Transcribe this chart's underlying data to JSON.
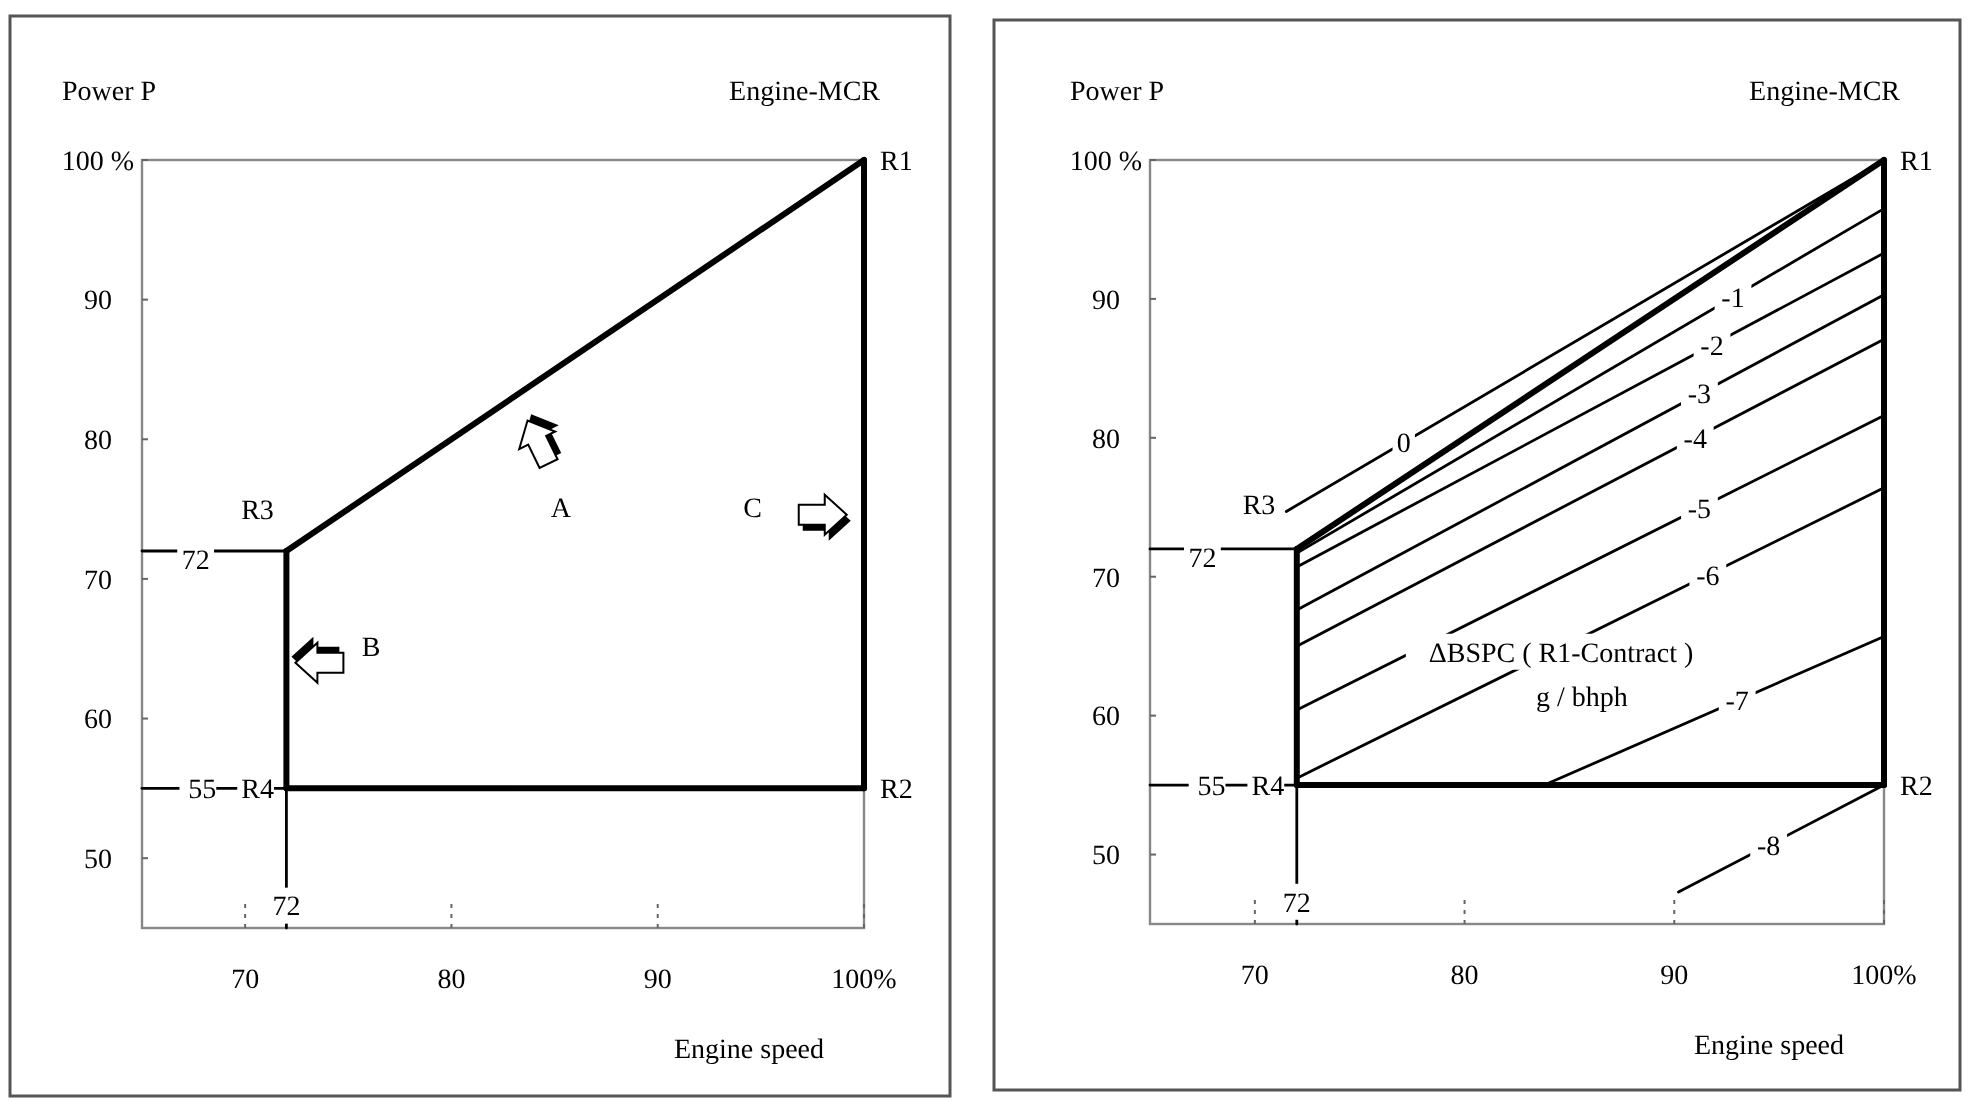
{
  "chart_data": [
    {
      "type": "line",
      "title": "Engine-MCR",
      "xlabel": "Engine speed",
      "ylabel": "Power P",
      "xlim": [
        65,
        100
      ],
      "ylim": [
        45,
        100
      ],
      "xticks": [
        70,
        80,
        90,
        {
          "value": 100,
          "label": "100%"
        }
      ],
      "yticks": [
        50,
        60,
        70,
        80,
        90,
        {
          "value": 100,
          "label": "100 %"
        }
      ],
      "series": [
        {
          "color": "#000000",
          "x": [
            72,
            100
          ],
          "values": [
            72,
            100
          ]
        },
        {
          "color": "#000000",
          "x": [
            72,
            100
          ],
          "values": [
            55,
            55
          ]
        },
        {
          "color": "#000000",
          "x": [
            100,
            100
          ],
          "values": [
            55,
            100
          ]
        },
        {
          "color": "#000000",
          "x": [
            72,
            72
          ],
          "values": [
            55,
            72
          ]
        },
        {
          "color": "#000000",
          "x": [
            65,
            72
          ],
          "values": [
            72,
            72
          ]
        },
        {
          "color": "#000000",
          "x": [
            65,
            72
          ],
          "values": [
            55,
            55
          ]
        },
        {
          "color": "#000000",
          "x": [
            72,
            72
          ],
          "values": [
            45,
            55
          ]
        }
      ],
      "annotations": [
        {
          "text": "R1",
          "x": 100,
          "y": 100
        },
        {
          "text": "R2",
          "x": 100,
          "y": 55
        },
        "R3",
        "R4",
        "72",
        "55",
        "72",
        "A",
        "B",
        "C"
      ]
    },
    {
      "type": "line",
      "title": "Engine-MCR",
      "xlabel": "Engine speed",
      "ylabel": "Power P",
      "xlim": [
        65,
        100
      ],
      "ylim": [
        45,
        100
      ],
      "xticks": [
        70,
        80,
        90,
        {
          "value": 100,
          "label": "100%"
        }
      ],
      "yticks": [
        50,
        60,
        70,
        80,
        90,
        {
          "value": 100,
          "label": "100 %"
        }
      ],
      "series": [
        {
          "color": "#000000",
          "x": [
            72,
            100
          ],
          "values": [
            72,
            100
          ]
        },
        {
          "color": "#000000",
          "x": [
            72,
            100
          ],
          "values": [
            55,
            55
          ]
        },
        {
          "color": "#000000",
          "x": [
            100,
            100
          ],
          "values": [
            55,
            100
          ]
        },
        {
          "color": "#000000",
          "x": [
            72,
            72
          ],
          "values": [
            55,
            72
          ]
        },
        {
          "color": "#000000",
          "x": [
            65,
            72
          ],
          "values": [
            72,
            72
          ]
        },
        {
          "color": "#000000",
          "x": [
            65,
            72
          ],
          "values": [
            55,
            55
          ]
        },
        {
          "color": "#000000",
          "x": [
            72,
            72
          ],
          "values": [
            45,
            55
          ]
        },
        {
          "color": "#000000",
          "x": [
            71.5,
            100
          ],
          "values": [
            74.7,
            100
          ]
        },
        {
          "color": "#000000",
          "x": [
            72,
            100
          ],
          "values": [
            71.7,
            96.5
          ]
        },
        {
          "color": "#000000",
          "x": [
            72,
            100
          ],
          "values": [
            70.7,
            93.3
          ]
        },
        {
          "color": "#000000",
          "x": [
            72,
            100
          ],
          "values": [
            67.6,
            90.3
          ]
        },
        {
          "color": "#000000",
          "x": [
            72,
            100
          ],
          "values": [
            65,
            87.1
          ]
        },
        {
          "color": "#000000",
          "x": [
            72,
            100
          ],
          "values": [
            60.4,
            81.6
          ]
        },
        {
          "color": "#000000",
          "x": [
            72,
            100
          ],
          "values": [
            55.5,
            76.4
          ]
        },
        {
          "color": "#000000",
          "x": [
            83.8,
            100
          ],
          "values": [
            55,
            65.7
          ]
        },
        {
          "color": "#000000",
          "x": [
            90.2,
            100
          ],
          "values": [
            47.3,
            55
          ]
        }
      ],
      "annotations": [
        {
          "text": "R1",
          "x": 100,
          "y": 100
        },
        {
          "text": "R2",
          "x": 100,
          "y": 55
        },
        {
          "text": "0",
          "x": 77.1,
          "y": 79.7
        },
        {
          "text": "-1",
          "x": 92.8,
          "y": 90.1
        },
        {
          "text": "-2",
          "x": 91.8,
          "y": 86.7
        },
        {
          "text": "-3",
          "x": 91.2,
          "y": 83.2
        },
        {
          "text": "-4",
          "x": 91.0,
          "y": 80.0
        },
        {
          "text": "-5",
          "x": 91.2,
          "y": 74.9
        },
        {
          "text": "-6",
          "x": 91.6,
          "y": 70.1
        },
        {
          "text": "-7",
          "x": 93.0,
          "y": 61.1
        },
        {
          "text": "-8",
          "x": 94.5,
          "y": 50.7
        },
        "R3",
        "R4",
        "72",
        "55",
        "72",
        "ΔBSPC ( R1-Contract )",
        "g / bhph"
      ]
    }
  ]
}
